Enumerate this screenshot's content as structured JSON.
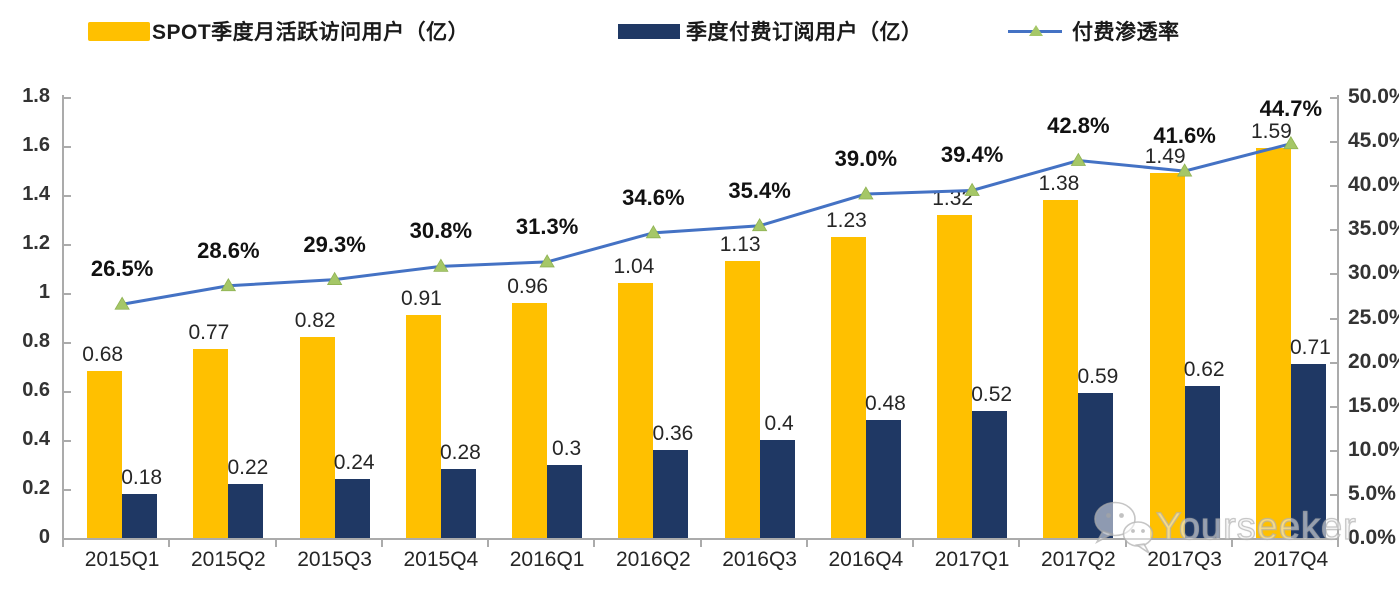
{
  "legend": {
    "items": [
      {
        "label": "SPOT季度月活跃访问用户（亿）",
        "color": "#FFC000",
        "type": "bar"
      },
      {
        "label": "季度付费订阅用户（亿）",
        "color": "#1F3864",
        "type": "bar"
      },
      {
        "label": "付费渗透率",
        "color": "#4472C4",
        "marker_color": "#A5C767",
        "type": "line"
      }
    ]
  },
  "watermark": {
    "icon": "wechat-icon",
    "text": "Yourseeker"
  },
  "colors": {
    "bar_mau": "#FFC000",
    "bar_subs": "#1F3864",
    "line": "#4472C4",
    "marker": "#A5C767",
    "axis": "#ABABAB",
    "text": "#262626"
  },
  "chart_data": {
    "type": "bar",
    "subtype": "grouped-bars-with-line",
    "categories": [
      "2015Q1",
      "2015Q2",
      "2015Q3",
      "2015Q4",
      "2016Q1",
      "2016Q2",
      "2016Q3",
      "2016Q4",
      "2017Q1",
      "2017Q2",
      "2017Q3",
      "2017Q4"
    ],
    "series": [
      {
        "name": "SPOT季度月活跃访问用户（亿）",
        "type": "bar",
        "axis": "left",
        "color": "#FFC000",
        "values": [
          0.68,
          0.77,
          0.82,
          0.91,
          0.96,
          1.04,
          1.13,
          1.23,
          1.32,
          1.38,
          1.49,
          1.59
        ],
        "labels": [
          "0.68",
          "0.77",
          "0.82",
          "0.91",
          "0.96",
          "1.04",
          "1.13",
          "1.23",
          "1.32",
          "1.38",
          "1.49",
          "1.59"
        ]
      },
      {
        "name": "季度付费订阅用户（亿）",
        "type": "bar",
        "axis": "left",
        "color": "#1F3864",
        "values": [
          0.18,
          0.22,
          0.24,
          0.28,
          0.3,
          0.36,
          0.4,
          0.48,
          0.52,
          0.59,
          0.62,
          0.71
        ],
        "labels": [
          "0.18",
          "0.22",
          "0.24",
          "0.28",
          "0.3",
          "0.36",
          "0.4",
          "0.48",
          "0.52",
          "0.59",
          "0.62",
          "0.71"
        ]
      },
      {
        "name": "付费渗透率",
        "type": "line",
        "axis": "right",
        "color": "#4472C4",
        "marker": "triangle",
        "marker_color": "#A5C767",
        "values": [
          26.5,
          28.6,
          29.3,
          30.8,
          31.3,
          34.6,
          35.4,
          39.0,
          39.4,
          42.8,
          41.6,
          44.7
        ],
        "labels": [
          "26.5%",
          "28.6%",
          "29.3%",
          "30.8%",
          "31.3%",
          "34.6%",
          "35.4%",
          "39.0%",
          "39.4%",
          "42.8%",
          "41.6%",
          "44.7%"
        ]
      }
    ],
    "left_axis": {
      "min": 0,
      "max": 1.8,
      "ticks": [
        "0",
        "0.2",
        "0.4",
        "0.6",
        "0.8",
        "1",
        "1.2",
        "1.4",
        "1.6",
        "1.8"
      ]
    },
    "right_axis": {
      "min": 0,
      "max": 50,
      "ticks": [
        "0.0%",
        "5.0%",
        "10.0%",
        "15.0%",
        "20.0%",
        "25.0%",
        "30.0%",
        "35.0%",
        "40.0%",
        "45.0%",
        "50.0%"
      ]
    },
    "grid": false,
    "legend_position": "top",
    "title": ""
  }
}
